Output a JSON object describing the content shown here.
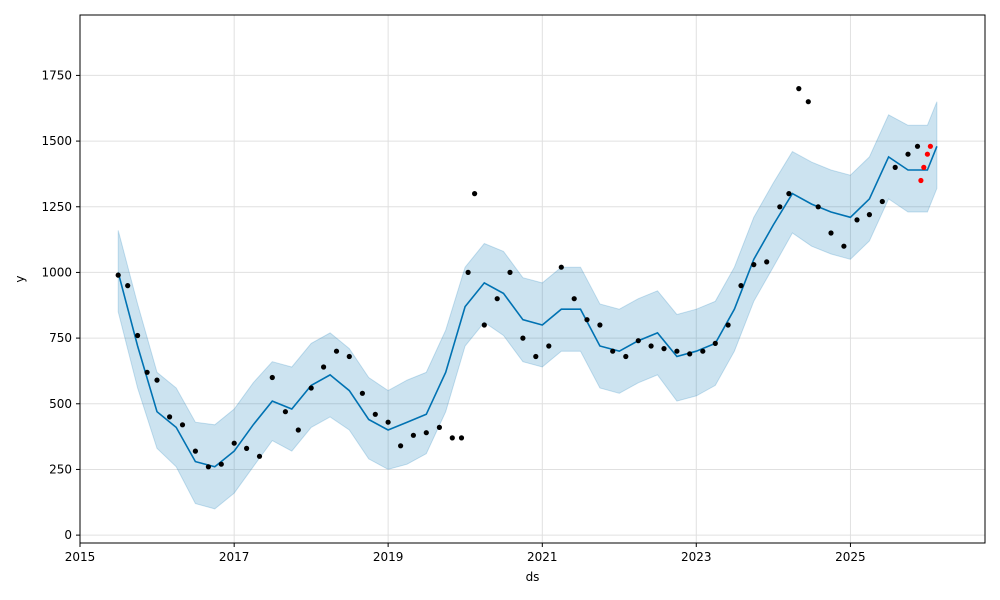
{
  "chart_data": {
    "type": "line",
    "title": "",
    "xlabel": "ds",
    "ylabel": "y",
    "x_ticks": [
      "2015",
      "2017",
      "2019",
      "2021",
      "2023",
      "2025"
    ],
    "y_ticks": [
      "0",
      "250",
      "500",
      "750",
      "1000",
      "1250",
      "1500",
      "1750"
    ],
    "xlim": [
      "2015-01-01",
      "2026-10-01"
    ],
    "ylim": [
      -30,
      1980
    ],
    "grid": true,
    "colors": {
      "forecast_line": "#0072B2",
      "uncertainty_band": "#0072B2",
      "observed_points": "#000000",
      "recent_points": "#FF0000",
      "grid": "#e0e0e0"
    },
    "forecast": {
      "x": [
        "2015-07-01",
        "2015-10-01",
        "2016-01-01",
        "2016-04-01",
        "2016-07-01",
        "2016-10-01",
        "2017-01-01",
        "2017-04-01",
        "2017-07-01",
        "2017-10-01",
        "2018-01-01",
        "2018-04-01",
        "2018-07-01",
        "2018-10-01",
        "2019-01-01",
        "2019-04-01",
        "2019-07-01",
        "2019-10-01",
        "2020-01-01",
        "2020-04-01",
        "2020-07-01",
        "2020-10-01",
        "2021-01-01",
        "2021-04-01",
        "2021-07-01",
        "2021-10-01",
        "2022-01-01",
        "2022-04-01",
        "2022-07-01",
        "2022-10-01",
        "2023-01-01",
        "2023-04-01",
        "2023-07-01",
        "2023-10-01",
        "2024-01-01",
        "2024-04-01",
        "2024-07-01",
        "2024-10-01",
        "2025-01-01",
        "2025-04-01",
        "2025-07-01",
        "2025-10-01",
        "2026-01-01",
        "2026-02-15"
      ],
      "yhat": [
        1000,
        720,
        470,
        410,
        280,
        260,
        320,
        420,
        510,
        480,
        570,
        610,
        550,
        440,
        400,
        430,
        460,
        620,
        870,
        960,
        920,
        820,
        800,
        860,
        860,
        720,
        700,
        740,
        770,
        680,
        700,
        730,
        860,
        1050,
        1180,
        1300,
        1260,
        1230,
        1210,
        1280,
        1440,
        1390,
        1390,
        1480
      ],
      "lower": [
        850,
        560,
        330,
        260,
        120,
        100,
        160,
        260,
        360,
        320,
        410,
        450,
        400,
        290,
        250,
        270,
        310,
        470,
        720,
        810,
        760,
        660,
        640,
        700,
        700,
        560,
        540,
        580,
        610,
        510,
        530,
        570,
        700,
        890,
        1020,
        1150,
        1100,
        1070,
        1050,
        1120,
        1280,
        1230,
        1230,
        1320
      ],
      "upper": [
        1160,
        880,
        620,
        560,
        430,
        420,
        480,
        580,
        660,
        640,
        730,
        770,
        710,
        600,
        550,
        590,
        620,
        780,
        1020,
        1110,
        1080,
        980,
        960,
        1020,
        1020,
        880,
        860,
        900,
        930,
        840,
        860,
        890,
        1020,
        1210,
        1340,
        1460,
        1420,
        1390,
        1370,
        1440,
        1600,
        1560,
        1560,
        1650
      ]
    },
    "observed": {
      "x": [
        "2015-07-01",
        "2015-08-15",
        "2015-10-01",
        "2015-11-15",
        "2016-01-01",
        "2016-03-01",
        "2016-05-01",
        "2016-07-01",
        "2016-09-01",
        "2016-11-01",
        "2017-01-01",
        "2017-03-01",
        "2017-05-01",
        "2017-07-01",
        "2017-09-01",
        "2017-11-01",
        "2018-01-01",
        "2018-03-01",
        "2018-05-01",
        "2018-07-01",
        "2018-09-01",
        "2018-11-01",
        "2019-01-01",
        "2019-03-01",
        "2019-05-01",
        "2019-07-01",
        "2019-09-01",
        "2019-11-01",
        "2019-12-15",
        "2020-01-15",
        "2020-02-15",
        "2020-04-01",
        "2020-06-01",
        "2020-08-01",
        "2020-10-01",
        "2020-12-01",
        "2021-02-01",
        "2021-04-01",
        "2021-06-01",
        "2021-08-01",
        "2021-10-01",
        "2021-12-01",
        "2022-02-01",
        "2022-04-01",
        "2022-06-01",
        "2022-08-01",
        "2022-10-01",
        "2022-12-01",
        "2023-02-01",
        "2023-04-01",
        "2023-06-01",
        "2023-08-01",
        "2023-10-01",
        "2023-12-01",
        "2024-02-01",
        "2024-03-15",
        "2024-05-01",
        "2024-06-15",
        "2024-08-01",
        "2024-10-01",
        "2024-12-01",
        "2025-02-01",
        "2025-04-01",
        "2025-06-01",
        "2025-08-01",
        "2025-10-01",
        "2025-11-15"
      ],
      "y": [
        990,
        950,
        760,
        620,
        590,
        450,
        420,
        320,
        260,
        270,
        350,
        330,
        300,
        600,
        470,
        400,
        560,
        640,
        700,
        680,
        540,
        460,
        430,
        340,
        380,
        390,
        410,
        370,
        370,
        1000,
        1300,
        800,
        900,
        1000,
        750,
        680,
        720,
        1020,
        900,
        820,
        800,
        700,
        680,
        740,
        720,
        710,
        700,
        690,
        700,
        730,
        800,
        950,
        1030,
        1040,
        1250,
        1300,
        1700,
        1650,
        1250,
        1150,
        1100,
        1200,
        1220,
        1270,
        1400,
        1450,
        1480
      ]
    },
    "recent": {
      "x": [
        "2025-12-01",
        "2025-12-15",
        "2026-01-01",
        "2026-01-15"
      ],
      "y": [
        1350,
        1400,
        1450,
        1480
      ]
    }
  }
}
